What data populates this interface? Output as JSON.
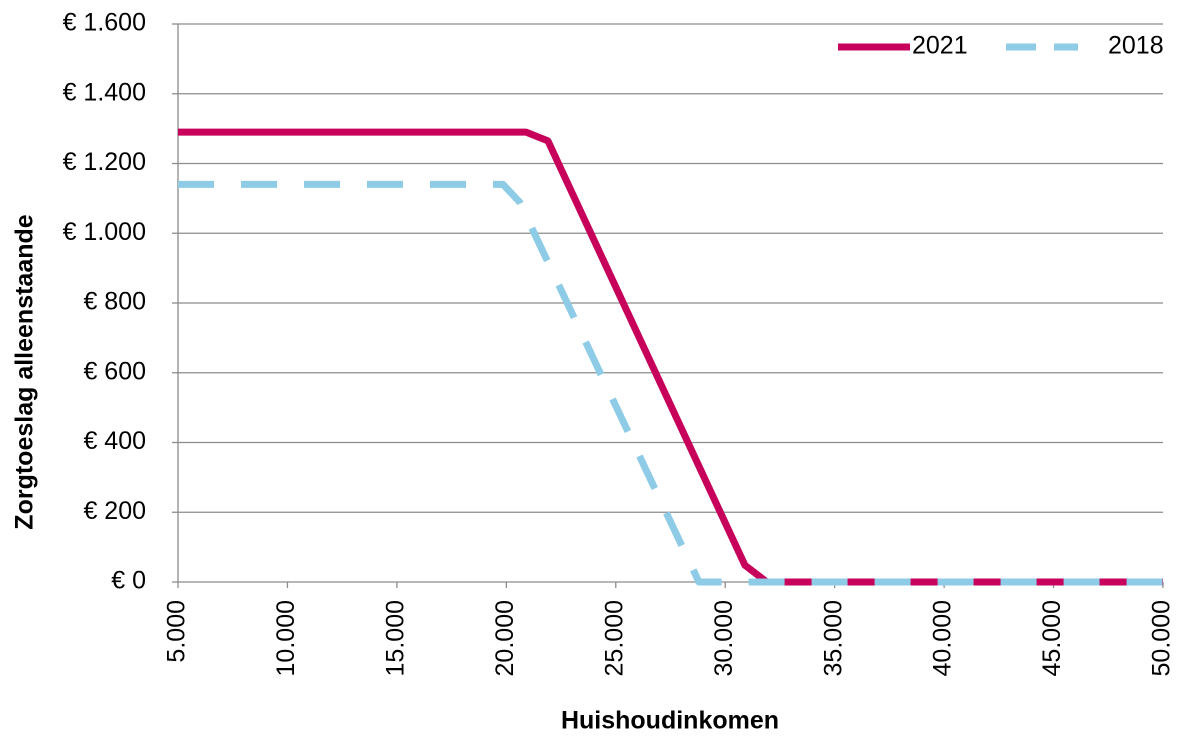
{
  "chart_data": {
    "type": "line",
    "x_label": "Huishoudinkomen",
    "y_label": "Zorgtoeslag alleenstaande",
    "xlim": [
      5000,
      50000
    ],
    "xticks": [
      {
        "value": 5000,
        "label": "5.000"
      },
      {
        "value": 10000,
        "label": "10.000"
      },
      {
        "value": 15000,
        "label": "15.000"
      },
      {
        "value": 20000,
        "label": "20.000"
      },
      {
        "value": 25000,
        "label": "25.000"
      },
      {
        "value": 30000,
        "label": "30.000"
      },
      {
        "value": 35000,
        "label": "35.000"
      },
      {
        "value": 40000,
        "label": "40.000"
      },
      {
        "value": 45000,
        "label": "45.000"
      },
      {
        "value": 50000,
        "label": "50.000"
      }
    ],
    "ylim": [
      0,
      1600
    ],
    "yticks": [
      {
        "value": 0,
        "label": "€ 0"
      },
      {
        "value": 200,
        "label": "€ 200"
      },
      {
        "value": 400,
        "label": "€ 400"
      },
      {
        "value": 600,
        "label": "€ 600"
      },
      {
        "value": 800,
        "label": "€ 800"
      },
      {
        "value": 1000,
        "label": "€ 1.000"
      },
      {
        "value": 1200,
        "label": "€ 1.200"
      },
      {
        "value": 1400,
        "label": "€ 1.400"
      },
      {
        "value": 1600,
        "label": "€ 1.600"
      }
    ],
    "grid": true,
    "legend": "top-right",
    "series": [
      {
        "name": "2021",
        "color": "#c7005b",
        "dashed": false,
        "x": [
          5000,
          20900,
          21900,
          30900,
          31900,
          50000
        ],
        "values": [
          1290,
          1290,
          1265,
          48,
          0,
          0
        ]
      },
      {
        "name": "2018",
        "color": "#8ecbe6",
        "dashed": true,
        "x": [
          5000,
          19850,
          20600,
          28800,
          50000
        ],
        "values": [
          1140,
          1140,
          1090,
          0,
          0
        ]
      }
    ]
  }
}
